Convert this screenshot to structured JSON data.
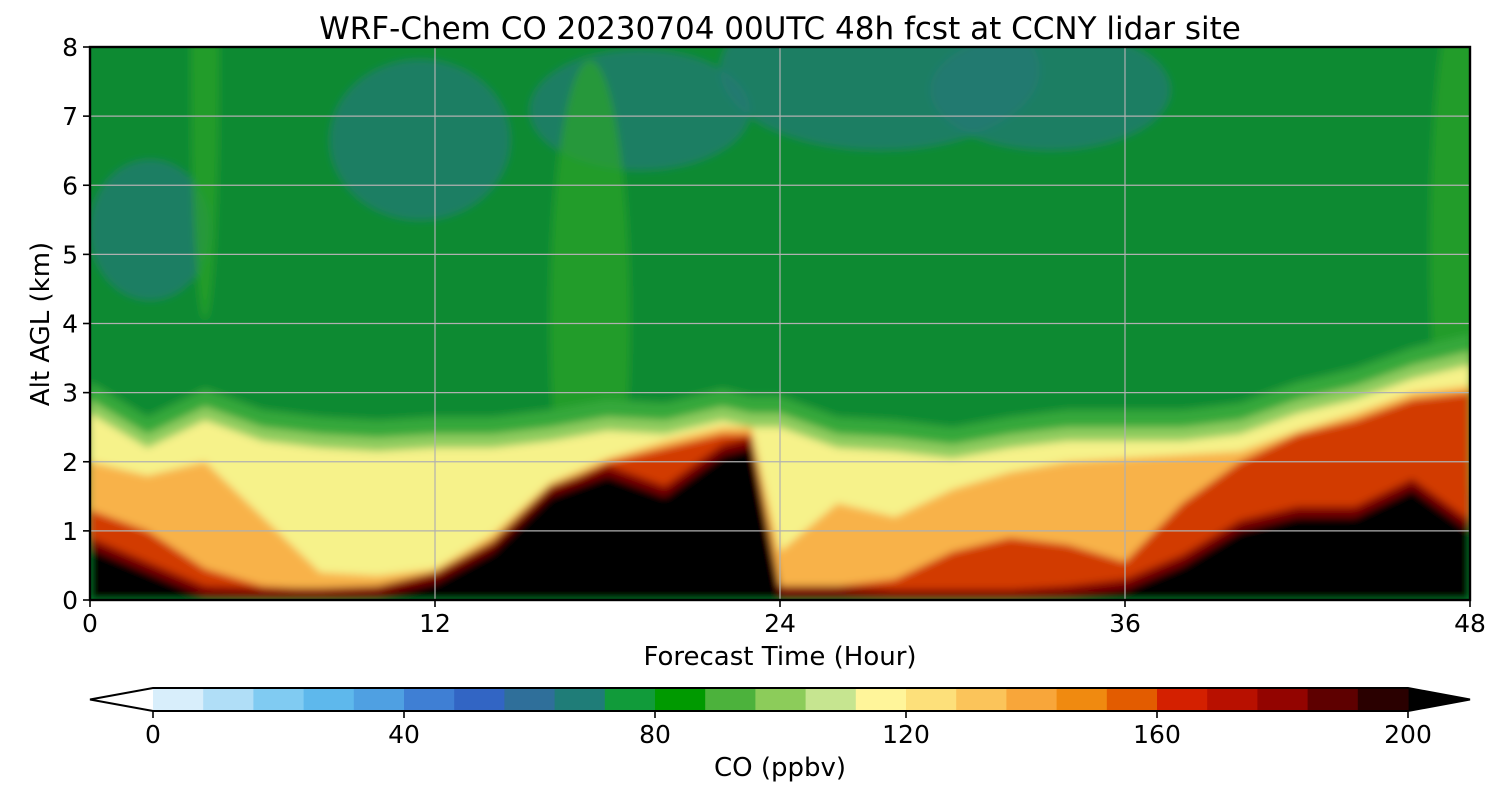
{
  "chart_data": {
    "type": "heatmap",
    "title": "WRF-Chem CO  20230704 00UTC 48h fcst at CCNY lidar site",
    "xlabel": "Forecast Time (Hour)",
    "ylabel": "Alt AGL (km)",
    "xlim": [
      0,
      48
    ],
    "ylim": [
      0,
      8
    ],
    "xticks": [
      0,
      12,
      24,
      36,
      48
    ],
    "yticks": [
      0,
      1,
      2,
      3,
      4,
      5,
      6,
      7,
      8
    ],
    "grid": true,
    "x_hours": [
      0,
      2,
      4,
      6,
      8,
      10,
      12,
      14,
      16,
      18,
      20,
      22,
      23,
      24,
      26,
      28,
      30,
      32,
      34,
      36,
      38,
      40,
      42,
      44,
      46,
      48
    ],
    "z_heights_km": [
      0,
      0.25,
      0.5,
      0.75,
      1,
      1.25,
      1.5,
      1.75,
      2,
      2.25,
      2.5,
      2.75,
      3,
      3.25,
      3.5,
      4,
      4.5,
      5,
      5.5,
      6,
      6.5,
      7,
      7.5,
      8
    ],
    "black_top_km": [
      0.75,
      0.4,
      0.05,
      0.02,
      0.02,
      0.05,
      0.25,
      0.7,
      1.5,
      1.8,
      1.5,
      2.1,
      2.2,
      0.05,
      0.05,
      0.0,
      0.0,
      0.0,
      0.05,
      0.15,
      0.5,
      1.0,
      1.2,
      1.2,
      1.6,
      1.0
    ],
    "red_top_km": [
      1.3,
      1.0,
      0.45,
      0.2,
      0.15,
      0.12,
      0.3,
      0.8,
      1.6,
      2.0,
      2.2,
      2.4,
      2.4,
      0.15,
      0.2,
      0.3,
      0.7,
      0.9,
      0.8,
      0.55,
      1.4,
      2.0,
      2.4,
      2.6,
      2.9,
      3.0
    ],
    "orange_top_km": [
      2.0,
      1.8,
      2.0,
      1.2,
      0.4,
      0.35,
      0.45,
      0.95,
      1.7,
      2.05,
      2.3,
      2.5,
      2.5,
      0.7,
      1.4,
      1.2,
      1.6,
      1.85,
      2.0,
      2.05,
      2.1,
      2.15,
      2.45,
      2.7,
      3.0,
      3.1
    ],
    "pbl_top_km": [
      2.7,
      2.2,
      2.6,
      2.3,
      2.2,
      2.15,
      2.2,
      2.2,
      2.3,
      2.45,
      2.4,
      2.6,
      2.5,
      2.5,
      2.2,
      2.15,
      2.05,
      2.2,
      2.3,
      2.3,
      2.3,
      2.4,
      2.7,
      2.9,
      3.2,
      3.4
    ],
    "colorbar": {
      "label": "CO  (ppbv)",
      "min": 0,
      "max": 200,
      "ticks": [
        0,
        40,
        80,
        120,
        160,
        200
      ],
      "extend": "both",
      "colors": [
        "#ffffff",
        "#d8eefb",
        "#b0def7",
        "#80cbf2",
        "#5eb8ec",
        "#4fa0e2",
        "#3f7fd4",
        "#3265c4",
        "#2f6f9a",
        "#1f7d78",
        "#119b3a",
        "#009a00",
        "#4cb23c",
        "#8ccc5a",
        "#c6e590",
        "#fff59a",
        "#fde07a",
        "#fbc45a",
        "#f8a63a",
        "#f08a10",
        "#e35c00",
        "#d42000",
        "#b81000",
        "#930400",
        "#5e0000",
        "#2a0000",
        "#000000"
      ]
    }
  }
}
